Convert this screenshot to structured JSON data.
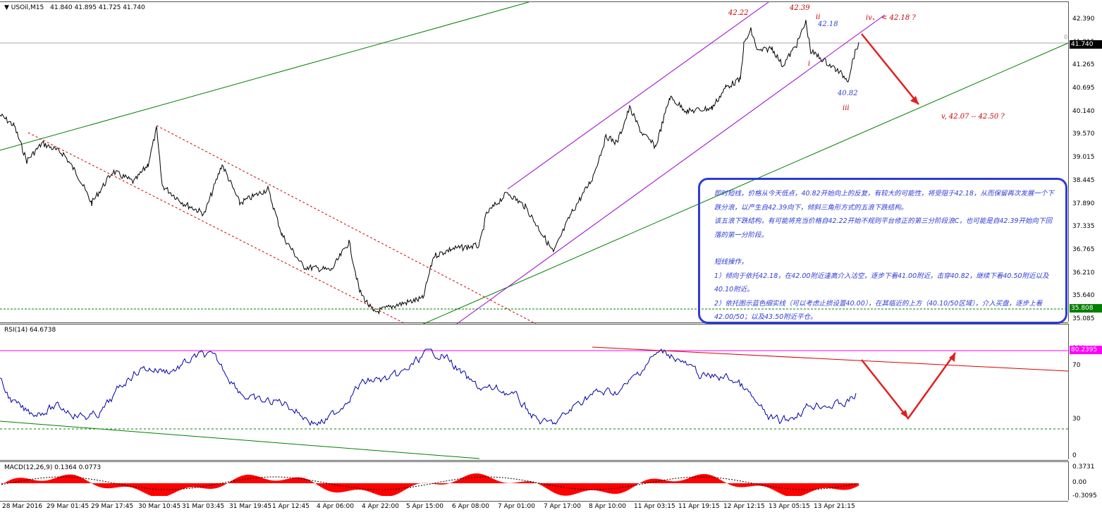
{
  "header": {
    "arrow": "▼",
    "symbol": "USOil,M15",
    "ohlc": "41.840 41.895 41.725 41.740"
  },
  "rsi_header": "RSI(14) 64.6738",
  "macd_header": "MACD(12,26,9) 0.1364 0.0773",
  "price_axis": [
    "42.390",
    "41.815",
    "41.265",
    "40.695",
    "40.140",
    "39.570",
    "39.015",
    "38.445",
    "37.890",
    "37.335",
    "36.765",
    "36.210",
    "35.640",
    "35.085"
  ],
  "price_tags": {
    "current": "41.740",
    "support": "35.808"
  },
  "rsi_axis": [
    "100",
    "70",
    "30",
    "0"
  ],
  "rsi_tag": "80.2395",
  "macd_axis": [
    "0.3731",
    "0.00",
    "-0.3095"
  ],
  "time_axis": [
    "28 Mar 2016",
    "29 Mar 01:45",
    "29 Mar 17:45",
    "30 Mar 10:45",
    "31 Mar 03:45",
    "31 Mar 19:45",
    "1 Apr 12:45",
    "4 Apr 06:00",
    "4 Apr 22:00",
    "5 Apr 15:00",
    "6 Apr 08:00",
    "7 Apr 01:00",
    "7 Apr 17:00",
    "8 Apr 10:00",
    "11 Apr 03:15",
    "11 Apr 19:15",
    "12 Apr 12:15",
    "13 Apr 05:15",
    "13 Apr 21:15"
  ],
  "annotations": {
    "peak1": "42.22",
    "peak2": "42.39",
    "wave_ii": "ii",
    "level_4218": "42.18",
    "wave_i": "i",
    "low_4082": "40.82",
    "wave_iii": "iii",
    "wave_iv": "iv、 < 42.18 ?",
    "wave_v": "v, 42.07 -- 42.50 ?",
    "tiny_zero": "0.0"
  },
  "comment": {
    "line1": "即时短线，价格从今天低点，40.82开始向上的反复，有较大的可能性，将受阻于42.18，从而保留再次发展一个下跌分浪，以产生自42.39向下，倾斜三角形方式的五浪下跌结构。",
    "line2": "该五浪下跌结构，有可能将充当价格自42.22开始不规则平台修正的第三分阶段浪C，也可能是自42.39开始向下回落的第一分阶段。",
    "ops_title": "短线操作，",
    "op1": "1）倾向于依托42.18，在42.00附近逢高介入沽空，逐步下看41.00附近，击穿40.82，继续下看40.50附近以及40.10附近。",
    "op2": "2）依托图示蓝色细实线（可以考虑止损设置40.00），在其临近的上方（40.10/50区域），介入买盘，逐步上看42.00/50；以及43.50附近平仓。"
  },
  "colors": {
    "price_line": "#000000",
    "rsi_line": "#0000aa",
    "macd_hist": "#ff0000",
    "channel_green": "#008000",
    "channel_violet": "#9900cc",
    "down_channel": "#cc0000",
    "arrow": "#e02020",
    "annotation_red": "#cc0000",
    "annotation_blue": "#3344cc",
    "level_magenta": "#ff00ff"
  }
}
